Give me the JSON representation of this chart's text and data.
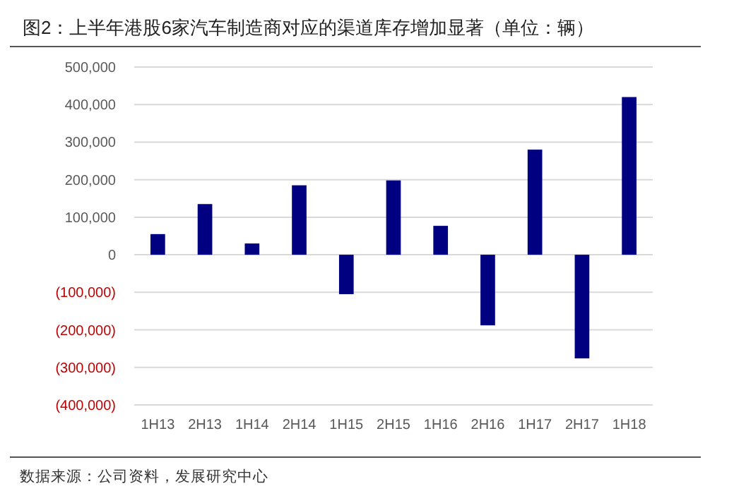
{
  "chart_data": {
    "type": "bar",
    "title": "图2：上半年港股6家汽车制造商对应的渠道库存增加显著（单位：辆）",
    "categories": [
      "1H13",
      "2H13",
      "1H14",
      "2H14",
      "1H15",
      "2H15",
      "1H16",
      "2H16",
      "1H17",
      "2H17",
      "1H18"
    ],
    "values": [
      55000,
      135000,
      30000,
      185000,
      -105000,
      198000,
      77000,
      -188000,
      280000,
      -276000,
      420000
    ],
    "color": "#000080",
    "ylim": [
      -400000,
      500000
    ],
    "yticks": [
      {
        "value": -400000,
        "label": "(400,000)"
      },
      {
        "value": -300000,
        "label": "(300,000)"
      },
      {
        "value": -200000,
        "label": "(200,000)"
      },
      {
        "value": -100000,
        "label": "(100,000)"
      },
      0,
      {
        "value": 100000,
        "label": "100,000"
      },
      {
        "value": 200000,
        "label": "200,000"
      },
      {
        "value": 300000,
        "label": "300,000"
      },
      {
        "value": 400000,
        "label": "400,000"
      },
      {
        "value": 500000,
        "label": "500,000"
      }
    ],
    "grid": "y",
    "annotations": [
      "数据来源：公司资料，发展研究中心"
    ]
  }
}
